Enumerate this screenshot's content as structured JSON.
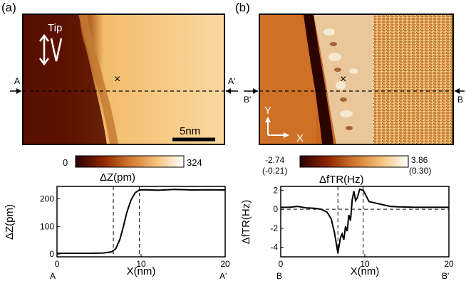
{
  "panel_a": {
    "label": "(a)",
    "tip_label": "Tip",
    "left_marker": "A",
    "right_marker": "A'",
    "scale_bar": "5nm",
    "colorbar": {
      "min": "0",
      "max": "324",
      "title": "ΔZ(pm)"
    }
  },
  "panel_b": {
    "label": "(b)",
    "left_marker": "B'",
    "right_marker": "B",
    "axis_y": "Y",
    "axis_x": "X",
    "colorbar": {
      "min": "-2.74",
      "min_sub": "(-0.21)",
      "max": "3.86",
      "max_sub": "(0.30)",
      "title": "ΔfTR(Hz)"
    }
  },
  "chart_data": [
    {
      "type": "line",
      "panel": "a",
      "xlabel": "X(nm)",
      "ylabel": "ΔZ(pm)",
      "xlim": [
        0,
        20
      ],
      "ylim": [
        -10,
        245
      ],
      "x_ticks": [
        "0",
        "10",
        "20"
      ],
      "y_ticks": [
        "0",
        "100",
        "200"
      ],
      "x_end_labels": [
        "A",
        "A'"
      ],
      "vlines": [
        6.7,
        9.8
      ],
      "x": [
        0,
        2,
        4,
        5.5,
        6.5,
        7,
        7.5,
        7.9,
        8.3,
        8.8,
        9.3,
        9.8,
        10.5,
        12,
        14,
        16,
        18,
        20
      ],
      "y": [
        3,
        3,
        3,
        4,
        8,
        20,
        55,
        100,
        150,
        195,
        222,
        232,
        233,
        231,
        234,
        232,
        233,
        232
      ]
    },
    {
      "type": "line",
      "panel": "b",
      "xlabel": "X(nm)",
      "ylabel": "ΔfTR(Hz)",
      "xlim": [
        0,
        20
      ],
      "ylim": [
        -5,
        2.4
      ],
      "x_ticks": [
        "0",
        "10",
        "20"
      ],
      "y_ticks": [
        "2",
        "0",
        "-2",
        "-4"
      ],
      "x_end_labels": [
        "B",
        "B'"
      ],
      "vlines": [
        6.8,
        9.8
      ],
      "x": [
        0,
        1,
        2,
        3,
        4,
        4.8,
        5.5,
        6.0,
        6.4,
        6.8,
        7.1,
        7.3,
        7.5,
        7.7,
        7.9,
        8.1,
        8.3,
        8.5,
        8.7,
        8.9,
        9.1,
        9.4,
        9.8,
        10.1,
        10.5,
        11,
        12,
        13,
        14,
        16,
        18,
        20
      ],
      "y": [
        0.2,
        0.2,
        0.3,
        0.15,
        0.1,
        0,
        -0.3,
        -1.0,
        -2.5,
        -4.6,
        -3.0,
        -2.6,
        -3.2,
        -1.8,
        -2.3,
        -0.6,
        -1.2,
        1.0,
        1.9,
        0.9,
        1.2,
        2.1,
        2.0,
        1.5,
        0.8,
        0.7,
        0.5,
        0.3,
        0.25,
        0.2,
        0.2,
        0.2
      ]
    }
  ]
}
